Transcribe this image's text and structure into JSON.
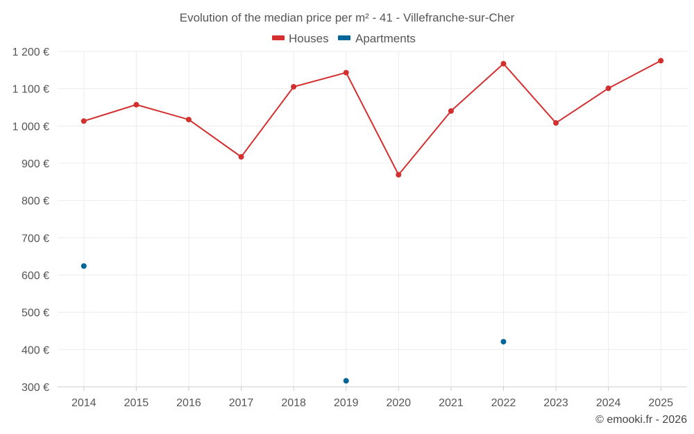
{
  "chart_data": {
    "type": "line",
    "title": "Evolution of the median price per m² - 41 - Villefranche-sur-Cher",
    "categories": [
      "2014",
      "2015",
      "2016",
      "2017",
      "2018",
      "2019",
      "2020",
      "2021",
      "2022",
      "2023",
      "2024",
      "2025"
    ],
    "series": [
      {
        "name": "Houses",
        "color": "#d32f2f",
        "style": "line-with-markers",
        "values": [
          1013,
          1057,
          1017,
          917,
          1105,
          1143,
          869,
          1040,
          1167,
          1008,
          1101,
          1175
        ]
      },
      {
        "name": "Apartments",
        "color": "#006699",
        "style": "markers-only",
        "values": [
          624,
          null,
          null,
          null,
          null,
          316,
          null,
          null,
          421,
          null,
          null,
          null
        ]
      }
    ],
    "ylim": [
      300,
      1200
    ],
    "yticks": [
      300,
      400,
      500,
      600,
      700,
      800,
      900,
      1000,
      1100,
      1200
    ],
    "ytick_labels": [
      "300 €",
      "400 €",
      "500 €",
      "600 €",
      "700 €",
      "800 €",
      "900 €",
      "1 000 €",
      "1 100 €",
      "1 200 €"
    ],
    "xlabel": "",
    "ylabel": "",
    "grid": true,
    "legend_position": "top-center"
  },
  "credit": "© emooki.fr - 2026"
}
